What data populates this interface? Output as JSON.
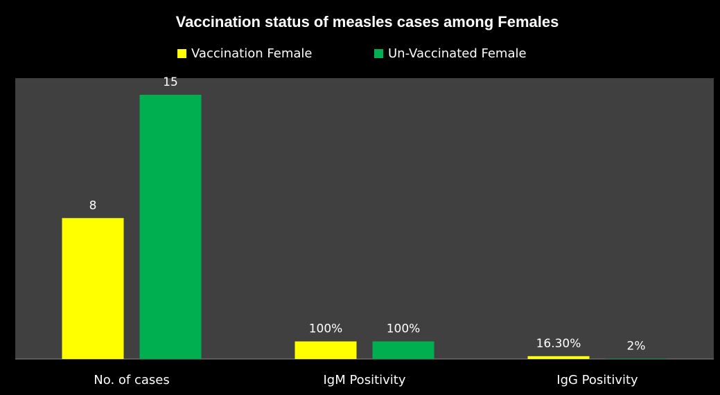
{
  "chart_data": {
    "type": "bar",
    "title": "Vaccination status of measles cases among  Females",
    "categories": [
      "No. of cases",
      "IgM Positivity",
      "IgG Positivity"
    ],
    "series": [
      {
        "name": "Vaccination Female",
        "color": "#ffff00",
        "values": [
          8,
          1,
          0.163
        ],
        "value_labels": [
          "8",
          "100%",
          "16.30%"
        ]
      },
      {
        "name": "Un-Vaccinated Female",
        "color": "#00b050",
        "values": [
          15,
          1,
          0.02
        ],
        "value_labels": [
          "15",
          "100%",
          "2%"
        ]
      }
    ],
    "legend": "top"
  }
}
